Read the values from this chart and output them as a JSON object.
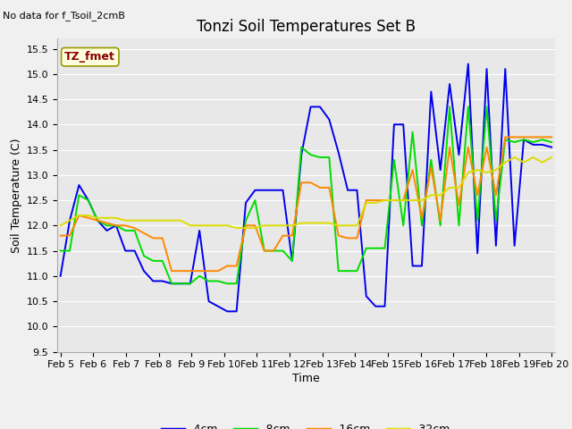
{
  "title": "Tonzi Soil Temperatures Set B",
  "xlabel": "Time",
  "ylabel": "Soil Temperature (C)",
  "no_data_text": "No data for f_Tsoil_2cmB",
  "legend_label": "TZ_fmet",
  "ylim": [
    9.5,
    15.7
  ],
  "xlim": [
    -0.1,
    15.1
  ],
  "colors": {
    "4cm": "#0000ee",
    "8cm": "#00dd00",
    "16cm": "#ff8800",
    "32cm": "#dddd00"
  },
  "xtick_labels": [
    "Feb 5",
    "Feb 6",
    "Feb 7",
    "Feb 8",
    "Feb 9",
    "Feb 10",
    "Feb 11",
    "Feb 12",
    "Feb 13",
    "Feb 14",
    "Feb 15",
    "Feb 16",
    "Feb 17",
    "Feb 18",
    "Feb 19",
    "Feb 20"
  ],
  "ytick_vals": [
    9.5,
    10.0,
    10.5,
    11.0,
    11.5,
    12.0,
    12.5,
    13.0,
    13.5,
    14.0,
    14.5,
    15.0,
    15.5
  ],
  "series_4cm": [
    11.0,
    12.1,
    12.8,
    12.5,
    12.1,
    11.9,
    12.0,
    11.5,
    11.5,
    11.1,
    10.9,
    10.9,
    10.85,
    10.85,
    10.85,
    11.9,
    10.5,
    10.4,
    10.3,
    10.3,
    12.45,
    12.7,
    12.7,
    12.7,
    12.7,
    11.3,
    13.4,
    14.35,
    14.35,
    14.1,
    13.45,
    12.7,
    12.7,
    10.6,
    10.4,
    10.4,
    14.0,
    14.0,
    11.2,
    11.2,
    14.65,
    13.1,
    14.8,
    13.4,
    15.2,
    11.45,
    15.1,
    11.6,
    15.1,
    11.6,
    13.7,
    13.6,
    13.6,
    13.55
  ],
  "series_8cm": [
    11.5,
    11.5,
    12.6,
    12.5,
    12.1,
    12.0,
    12.0,
    11.9,
    11.9,
    11.4,
    11.3,
    11.3,
    10.85,
    10.85,
    10.85,
    11.0,
    10.9,
    10.9,
    10.85,
    10.85,
    12.1,
    12.5,
    11.5,
    11.5,
    11.5,
    11.3,
    13.55,
    13.4,
    13.35,
    13.35,
    11.1,
    11.1,
    11.1,
    11.55,
    11.55,
    11.55,
    13.3,
    12.0,
    13.85,
    12.0,
    13.3,
    12.0,
    14.35,
    12.0,
    14.35,
    12.1,
    14.35,
    12.1,
    13.7,
    13.65,
    13.7,
    13.65,
    13.7,
    13.65
  ],
  "series_16cm": [
    11.8,
    11.8,
    12.2,
    12.15,
    12.1,
    12.05,
    12.0,
    12.0,
    11.95,
    11.85,
    11.75,
    11.75,
    11.1,
    11.1,
    11.1,
    11.1,
    11.1,
    11.1,
    11.2,
    11.2,
    12.0,
    12.0,
    11.5,
    11.5,
    11.8,
    11.8,
    12.85,
    12.85,
    12.75,
    12.75,
    11.8,
    11.75,
    11.75,
    12.5,
    12.5,
    12.5,
    12.5,
    12.5,
    13.1,
    12.15,
    13.15,
    12.1,
    13.55,
    12.4,
    13.55,
    12.6,
    13.55,
    12.6,
    13.75,
    13.75,
    13.75,
    13.75,
    13.75,
    13.75
  ],
  "series_32cm": [
    12.0,
    12.1,
    12.2,
    12.2,
    12.15,
    12.15,
    12.15,
    12.1,
    12.1,
    12.1,
    12.1,
    12.1,
    12.1,
    12.1,
    12.0,
    12.0,
    12.0,
    12.0,
    12.0,
    11.95,
    11.95,
    11.95,
    12.0,
    12.0,
    12.0,
    12.0,
    12.05,
    12.05,
    12.05,
    12.05,
    12.0,
    12.0,
    12.0,
    12.45,
    12.45,
    12.5,
    12.5,
    12.5,
    12.5,
    12.5,
    12.6,
    12.6,
    12.75,
    12.75,
    13.05,
    13.1,
    13.05,
    13.1,
    13.25,
    13.35,
    13.25,
    13.35,
    13.25,
    13.35
  ],
  "bg_color": "#f0f0f0",
  "ax_color": "#e8e8e8",
  "grid_color": "#ffffff",
  "title_fontsize": 12,
  "axis_label_fontsize": 9,
  "tick_fontsize": 8,
  "legend_fontsize": 9,
  "no_data_fontsize": 8,
  "linewidth": 1.4
}
